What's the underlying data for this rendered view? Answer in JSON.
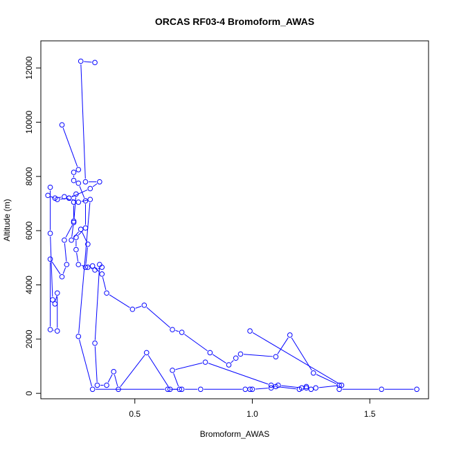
{
  "chart_data": {
    "type": "line",
    "title": "ORCAS RF03-4 Bromoform_AWAS",
    "xlabel": "Bromoform_AWAS",
    "ylabel": "Altitude (m)",
    "xlim": [
      0.1,
      1.75
    ],
    "ylim": [
      -200,
      13000
    ],
    "xticks": [
      0.5,
      1.0,
      1.5
    ],
    "xtick_labels": [
      "0.5",
      "1.0",
      "1.5"
    ],
    "yticks": [
      0,
      2000,
      4000,
      6000,
      8000,
      10000,
      12000
    ],
    "ytick_labels": [
      "0",
      "2000",
      "4000",
      "6000",
      "8000",
      "10000",
      "12000"
    ],
    "grid": false,
    "legend": "none",
    "colors": {
      "series": "#0000ff",
      "axis": "#000000",
      "background": "#ffffff"
    },
    "series": [
      {
        "marker": "open-circle",
        "x": [
          0.33,
          0.27,
          0.29,
          0.35,
          0.31,
          0.22,
          0.17,
          0.13,
          0.16,
          0.2,
          0.24,
          0.24,
          0.23,
          0.27,
          0.3,
          0.29,
          0.32,
          0.36,
          0.38,
          0.49,
          0.54,
          0.66,
          0.7,
          0.82,
          0.9,
          0.93,
          0.95,
          1.1,
          1.16,
          1.26,
          1.37,
          1.37,
          1.55,
          1.7
        ],
        "y": [
          12200,
          12250,
          7800,
          7800,
          7550,
          7200,
          7150,
          7300,
          7200,
          7250,
          7050,
          6350,
          5650,
          6050,
          5500,
          4650,
          4700,
          4400,
          3700,
          3100,
          3250,
          2350,
          2250,
          1500,
          1050,
          1300,
          1450,
          1350,
          2150,
          750,
          300,
          150,
          150,
          150
        ]
      },
      {
        "marker": "open-circle",
        "x": [
          0.19,
          0.26,
          0.24,
          0.24,
          0.26,
          0.29,
          0.29,
          0.25,
          0.25,
          0.26,
          0.3,
          0.33,
          0.36,
          0.35,
          0.33,
          0.34,
          0.38,
          0.41,
          0.43,
          0.55,
          0.65,
          0.7,
          0.78,
          0.97,
          0.99,
          1.0,
          1.08,
          1.11,
          1.21,
          1.23,
          1.25,
          1.27,
          1.38,
          0.99
        ],
        "y": [
          9900,
          8250,
          8150,
          7850,
          7750,
          7100,
          6100,
          5750,
          5300,
          4750,
          4650,
          4550,
          4650,
          4750,
          1850,
          300,
          300,
          800,
          150,
          1500,
          150,
          150,
          150,
          150,
          150,
          150,
          200,
          300,
          200,
          250,
          150,
          200,
          300,
          2300
        ]
      },
      {
        "marker": "open-circle",
        "x": [
          0.14,
          0.14,
          0.15,
          0.16,
          0.17,
          0.17,
          0.14,
          0.14,
          0.19,
          0.21,
          0.2,
          0.24,
          0.25,
          0.22,
          0.26,
          0.31,
          0.26,
          0.32,
          0.64,
          0.69,
          0.66,
          0.8,
          1.08,
          1.1,
          1.2,
          1.23
        ],
        "y": [
          7600,
          5900,
          3450,
          3300,
          3700,
          2300,
          2350,
          4950,
          4300,
          4750,
          5650,
          6300,
          7350,
          7200,
          7050,
          7150,
          2100,
          150,
          150,
          150,
          850,
          1150,
          300,
          250,
          150,
          200
        ]
      }
    ]
  }
}
